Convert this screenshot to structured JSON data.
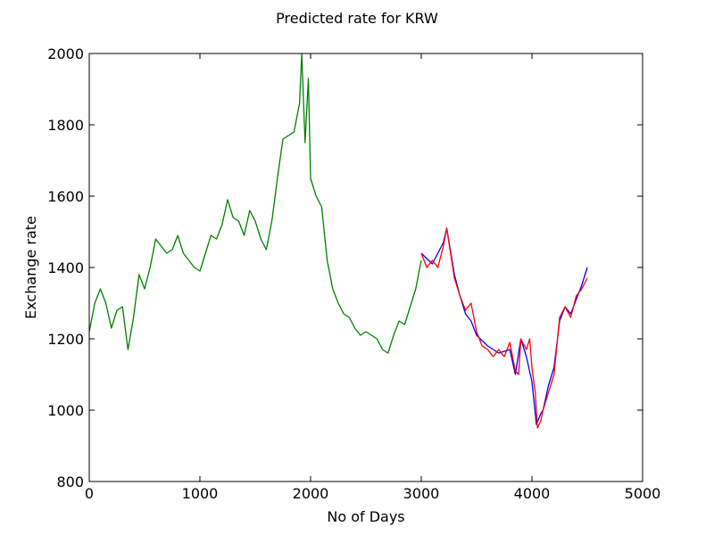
{
  "chart_data": {
    "type": "line",
    "title": "Predicted rate for KRW",
    "xlabel": "No of Days",
    "ylabel": "Exchange rate",
    "xlim": [
      0,
      5000
    ],
    "ylim": [
      800,
      2000
    ],
    "xticks": [
      0,
      1000,
      2000,
      3000,
      4000,
      5000
    ],
    "yticks": [
      800,
      1000,
      1200,
      1400,
      1600,
      1800,
      2000
    ],
    "grid": false,
    "legend": "none",
    "series": [
      {
        "color": "#0000ff",
        "x": [
          3000,
          3100,
          3200,
          3230,
          3300,
          3350,
          3400,
          3450,
          3500,
          3600,
          3700,
          3800,
          3850,
          3900,
          3950,
          4000,
          4040,
          4080,
          4100,
          4150,
          4200,
          4250,
          4300,
          4350,
          4400,
          4450,
          4500
        ],
        "y": [
          1440,
          1410,
          1470,
          1510,
          1380,
          1320,
          1270,
          1250,
          1210,
          1180,
          1160,
          1170,
          1100,
          1200,
          1150,
          1080,
          960,
          990,
          1000,
          1070,
          1120,
          1250,
          1290,
          1270,
          1310,
          1350,
          1400
        ]
      },
      {
        "color": "#008000",
        "x": [
          0,
          50,
          100,
          150,
          200,
          250,
          300,
          350,
          400,
          450,
          500,
          550,
          600,
          650,
          700,
          750,
          800,
          850,
          900,
          950,
          1000,
          1050,
          1100,
          1150,
          1200,
          1250,
          1300,
          1350,
          1400,
          1450,
          1500,
          1550,
          1600,
          1650,
          1700,
          1750,
          1800,
          1850,
          1900,
          1920,
          1950,
          1980,
          2000,
          2050,
          2100,
          2150,
          2200,
          2250,
          2300,
          2350,
          2400,
          2450,
          2500,
          2550,
          2600,
          2650,
          2700,
          2750,
          2800,
          2850,
          2900,
          2950,
          3000
        ],
        "y": [
          1220,
          1300,
          1340,
          1300,
          1230,
          1280,
          1290,
          1170,
          1260,
          1380,
          1340,
          1400,
          1480,
          1460,
          1440,
          1450,
          1490,
          1440,
          1420,
          1400,
          1390,
          1440,
          1490,
          1480,
          1520,
          1590,
          1540,
          1530,
          1490,
          1560,
          1530,
          1480,
          1450,
          1530,
          1650,
          1760,
          1770,
          1780,
          1860,
          2000,
          1750,
          1930,
          1650,
          1600,
          1570,
          1420,
          1340,
          1300,
          1270,
          1260,
          1230,
          1210,
          1220,
          1210,
          1200,
          1170,
          1160,
          1210,
          1250,
          1240,
          1290,
          1340,
          1420
        ]
      },
      {
        "color": "#ff0000",
        "x": [
          3000,
          3050,
          3100,
          3150,
          3200,
          3230,
          3260,
          3300,
          3350,
          3400,
          3450,
          3500,
          3550,
          3600,
          3650,
          3700,
          3750,
          3800,
          3850,
          3880,
          3900,
          3950,
          3980,
          4000,
          4030,
          4050,
          4080,
          4100,
          4150,
          4200,
          4250,
          4300,
          4350,
          4400,
          4450,
          4500
        ],
        "y": [
          1440,
          1400,
          1420,
          1400,
          1460,
          1510,
          1450,
          1370,
          1320,
          1280,
          1300,
          1220,
          1180,
          1170,
          1150,
          1170,
          1150,
          1190,
          1110,
          1100,
          1200,
          1170,
          1200,
          1120,
          1050,
          950,
          970,
          1000,
          1050,
          1100,
          1260,
          1290,
          1260,
          1320,
          1340,
          1370
        ]
      }
    ]
  }
}
